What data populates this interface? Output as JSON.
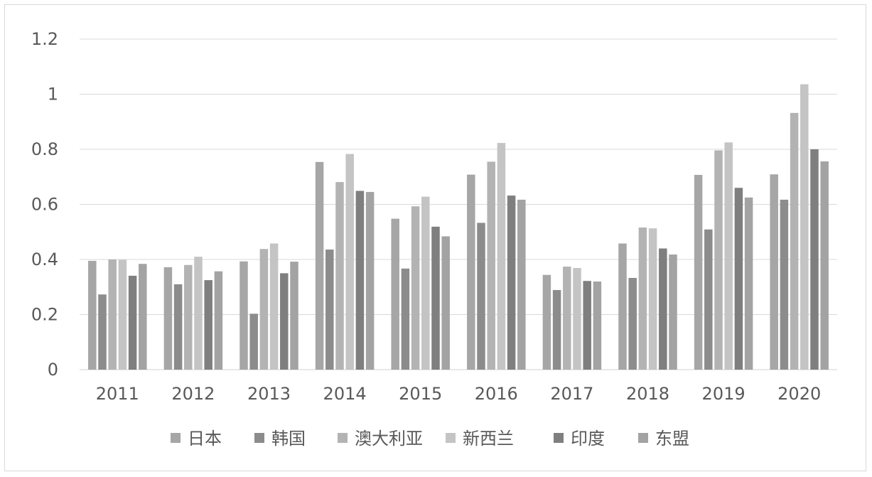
{
  "chart_data": {
    "type": "bar",
    "title": "",
    "xlabel": "",
    "ylabel": "",
    "categories": [
      "2011",
      "2012",
      "2013",
      "2014",
      "2015",
      "2016",
      "2017",
      "2018",
      "2019",
      "2020"
    ],
    "ylim": [
      0,
      1.2
    ],
    "yticks": [
      "0",
      "0.2",
      "0.4",
      "0.6",
      "0.8",
      "1",
      "1.2"
    ],
    "grid": true,
    "legend_position": "bottom",
    "series": [
      {
        "name": "日本",
        "color": "#a6a6a6",
        "values": [
          0.395,
          0.372,
          0.393,
          0.754,
          0.548,
          0.708,
          0.344,
          0.458,
          0.707,
          0.709
        ]
      },
      {
        "name": "韩国",
        "color": "#8c8c8c",
        "values": [
          0.273,
          0.31,
          0.203,
          0.436,
          0.367,
          0.533,
          0.289,
          0.333,
          0.509,
          0.617
        ]
      },
      {
        "name": "澳大利亚",
        "color": "#b3b3b3",
        "values": [
          0.4,
          0.38,
          0.438,
          0.681,
          0.593,
          0.755,
          0.374,
          0.516,
          0.796,
          0.932
        ]
      },
      {
        "name": "新西兰",
        "color": "#c4c4c4",
        "values": [
          0.399,
          0.41,
          0.458,
          0.783,
          0.628,
          0.823,
          0.369,
          0.513,
          0.825,
          1.036
        ]
      },
      {
        "name": "印度",
        "color": "#7f7f7f",
        "values": [
          0.341,
          0.325,
          0.35,
          0.649,
          0.519,
          0.632,
          0.322,
          0.44,
          0.66,
          0.8
        ]
      },
      {
        "name": "东盟",
        "color": "#a3a3a3",
        "values": [
          0.384,
          0.357,
          0.392,
          0.645,
          0.484,
          0.617,
          0.32,
          0.418,
          0.625,
          0.756
        ]
      }
    ]
  }
}
